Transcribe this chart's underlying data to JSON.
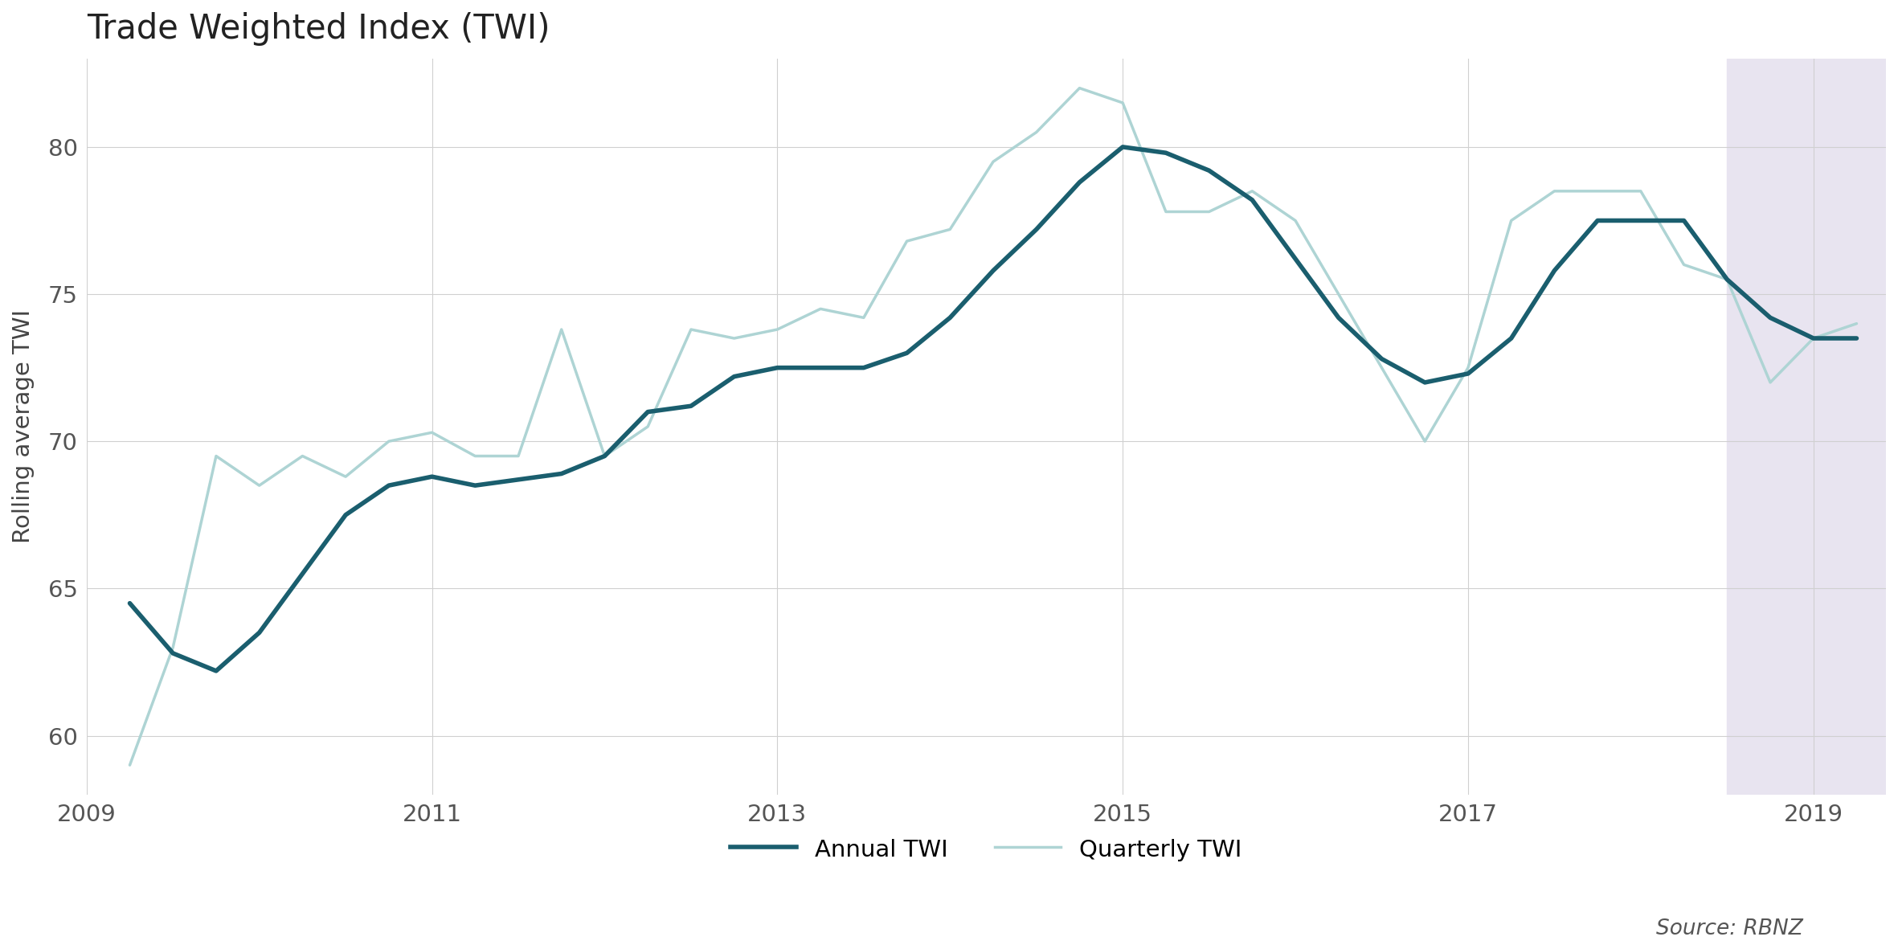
{
  "title": "Trade Weighted Index (TWI)",
  "ylabel": "Rolling average TWI",
  "source": "Source: RBNZ",
  "bg_color": "#ffffff",
  "grid_color": "#d0d0d0",
  "annual_color": "#1a5e6e",
  "quarterly_color": "#aed4d4",
  "shade_color": "#e8e4f0",
  "shade_start": 2018.5,
  "shade_end": 2019.42,
  "ylim": [
    58,
    83
  ],
  "yticks": [
    60,
    65,
    70,
    75,
    80
  ],
  "xlim_left": 2009.0,
  "xlim_right": 2019.42,
  "annual_x": [
    2009.25,
    2009.5,
    2009.75,
    2010.0,
    2010.25,
    2010.5,
    2010.75,
    2011.0,
    2011.25,
    2011.5,
    2011.75,
    2012.0,
    2012.25,
    2012.5,
    2012.75,
    2013.0,
    2013.25,
    2013.5,
    2013.75,
    2014.0,
    2014.25,
    2014.5,
    2014.75,
    2015.0,
    2015.25,
    2015.5,
    2015.75,
    2016.0,
    2016.25,
    2016.5,
    2016.75,
    2017.0,
    2017.25,
    2017.5,
    2017.75,
    2018.0,
    2018.25,
    2018.5,
    2018.75,
    2019.0,
    2019.25
  ],
  "annual_y": [
    64.5,
    62.8,
    62.2,
    63.5,
    65.5,
    67.5,
    68.5,
    68.8,
    68.5,
    68.7,
    68.9,
    69.5,
    71.0,
    71.2,
    72.2,
    72.5,
    72.5,
    72.5,
    73.0,
    74.2,
    75.8,
    77.2,
    78.8,
    80.0,
    79.8,
    79.2,
    78.2,
    76.2,
    74.2,
    72.8,
    72.0,
    72.3,
    73.5,
    75.8,
    77.5,
    77.5,
    77.5,
    75.5,
    74.2,
    73.5,
    73.5
  ],
  "quarterly_x": [
    2009.25,
    2009.5,
    2009.75,
    2010.0,
    2010.25,
    2010.5,
    2010.75,
    2011.0,
    2011.25,
    2011.5,
    2011.75,
    2012.0,
    2012.25,
    2012.5,
    2012.75,
    2013.0,
    2013.25,
    2013.5,
    2013.75,
    2014.0,
    2014.25,
    2014.5,
    2014.75,
    2015.0,
    2015.25,
    2015.5,
    2015.75,
    2016.0,
    2016.25,
    2016.5,
    2016.75,
    2017.0,
    2017.25,
    2017.5,
    2017.75,
    2018.0,
    2018.25,
    2018.5,
    2018.75,
    2019.0,
    2019.25
  ],
  "quarterly_y": [
    59.0,
    63.0,
    69.5,
    68.5,
    69.5,
    68.8,
    70.0,
    70.3,
    69.5,
    69.5,
    73.8,
    69.5,
    70.5,
    73.8,
    73.5,
    73.8,
    74.5,
    74.2,
    76.8,
    77.2,
    79.5,
    80.5,
    82.0,
    81.5,
    77.8,
    77.8,
    78.5,
    77.5,
    75.0,
    72.5,
    70.0,
    72.5,
    77.5,
    78.5,
    78.5,
    78.5,
    76.0,
    75.5,
    72.0,
    73.5,
    74.0
  ],
  "xtick_labels": [
    "2009",
    "2011",
    "2013",
    "2015",
    "2017",
    "2019"
  ],
  "xtick_positions": [
    2009,
    2011,
    2013,
    2015,
    2017,
    2019
  ]
}
